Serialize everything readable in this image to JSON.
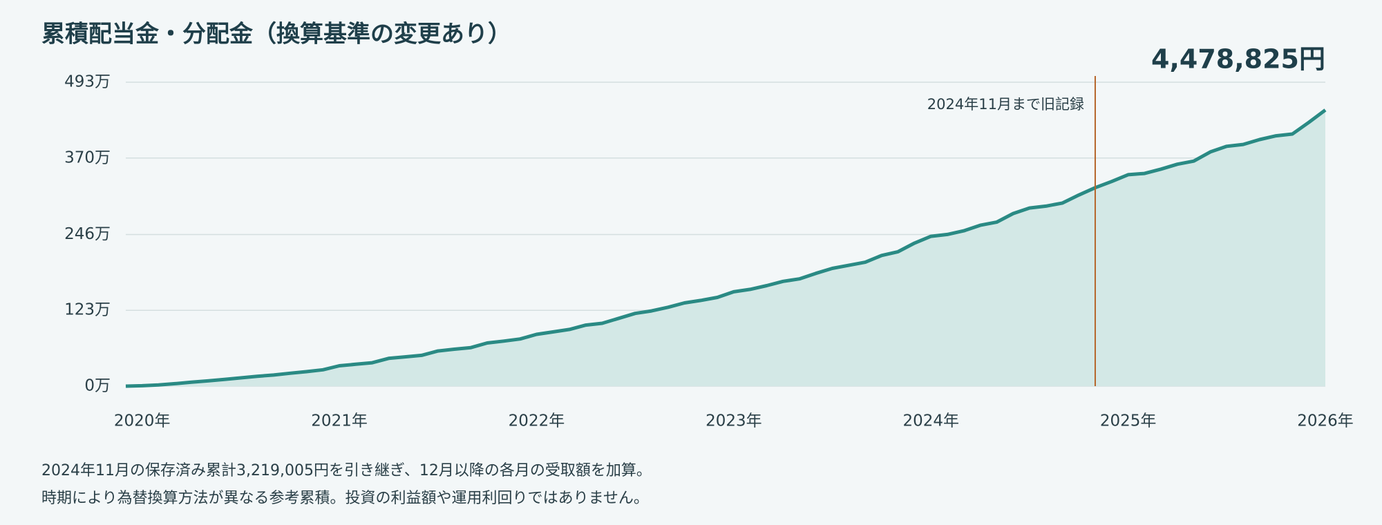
{
  "chart_data": {
    "type": "area",
    "title": "累積配当金・分配金（換算基準の変更あり）",
    "total_label": "4,478,825円",
    "x": [
      2019.917,
      2020,
      2020.083,
      2020.167,
      2020.25,
      2020.333,
      2020.417,
      2020.5,
      2020.583,
      2020.667,
      2020.75,
      2020.833,
      2020.917,
      2021,
      2021.083,
      2021.167,
      2021.25,
      2021.333,
      2021.417,
      2021.5,
      2021.583,
      2021.667,
      2021.75,
      2021.833,
      2021.917,
      2022,
      2022.083,
      2022.167,
      2022.25,
      2022.333,
      2022.417,
      2022.5,
      2022.583,
      2022.667,
      2022.75,
      2022.833,
      2022.917,
      2023,
      2023.083,
      2023.167,
      2023.25,
      2023.333,
      2023.417,
      2023.5,
      2023.583,
      2023.667,
      2023.75,
      2023.833,
      2023.917,
      2024,
      2024.083,
      2024.167,
      2024.25,
      2024.333,
      2024.417,
      2024.5,
      2024.583,
      2024.667,
      2024.75,
      2024.833,
      2024.917,
      2025,
      2025.083,
      2025.167,
      2025.25,
      2025.333,
      2025.417,
      2025.5,
      2025.583,
      2025.667,
      2025.75,
      2025.833,
      2025.917,
      2026
    ],
    "values": [
      0,
      0.7,
      2,
      4,
      6.5,
      8.5,
      11,
      13.5,
      16,
      18,
      21,
      23.5,
      26.5,
      33,
      35.5,
      38,
      45,
      47.5,
      50,
      57,
      60,
      62.5,
      70,
      73,
      76.5,
      84,
      88,
      92,
      99,
      102,
      110,
      118,
      122,
      128,
      135,
      139,
      144,
      153,
      157,
      163,
      170,
      174,
      183,
      191,
      196,
      201,
      212,
      218,
      232,
      243,
      246,
      252,
      261,
      266,
      280,
      289,
      292,
      297,
      310,
      321.9005,
      332,
      343,
      345,
      352,
      360,
      365,
      380,
      389,
      392,
      400,
      406,
      409,
      428,
      447.8825
    ],
    "color": "#2a8a84",
    "area_color": "#d3e8e6",
    "xlim": [
      2019.917,
      2026
    ],
    "xticks": [
      {
        "value": 2020,
        "label": "2020年"
      },
      {
        "value": 2021,
        "label": "2021年"
      },
      {
        "value": 2022,
        "label": "2022年"
      },
      {
        "value": 2023,
        "label": "2023年"
      },
      {
        "value": 2024,
        "label": "2024年"
      },
      {
        "value": 2025,
        "label": "2025年"
      },
      {
        "value": 2026,
        "label": "2026年"
      }
    ],
    "ylim": [
      0,
      493
    ],
    "yticks": [
      {
        "value": 0,
        "label": "0万"
      },
      {
        "value": 123,
        "label": "123万"
      },
      {
        "value": 246,
        "label": "246万"
      },
      {
        "value": 370,
        "label": "370万"
      },
      {
        "value": 493,
        "label": "493万"
      }
    ],
    "grid": true,
    "marker_line": {
      "x": 2024.833,
      "label": "2024年11月まで旧記録",
      "color": "#b5652a"
    },
    "notes": [
      "2024年11月の保存済み累計3,219,005円を引き継ぎ、12月以降の各月の受取額を加算。",
      "時期により為替換算方法が異なる参考累積。投資の利益額や運用利回りではありません。"
    ]
  }
}
